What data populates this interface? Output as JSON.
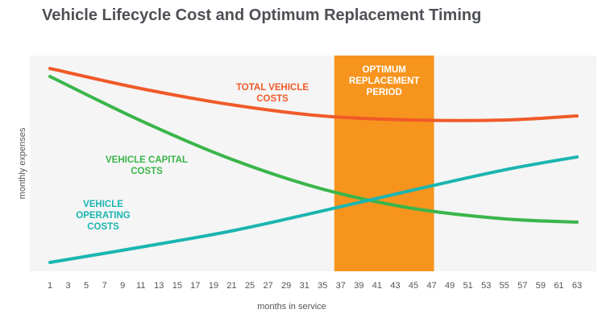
{
  "chart_data": {
    "type": "line",
    "title": "Vehicle Lifecycle Cost and Optimum Replacement Timing",
    "xlabel": "months in service",
    "ylabel": "monthly expenses",
    "categories": [
      "1",
      "3",
      "5",
      "7",
      "9",
      "11",
      "13",
      "15",
      "17",
      "19",
      "21",
      "25",
      "27",
      "29",
      "31",
      "35",
      "37",
      "39",
      "41",
      "43",
      "45",
      "47",
      "49",
      "51",
      "53",
      "55",
      "57",
      "59",
      "61",
      "63"
    ],
    "ylim": [
      0,
      100
    ],
    "grid": false,
    "background": "#f5f5f5",
    "series": [
      {
        "name": "TOTAL VEHICLE COSTS",
        "color": "#f05a28",
        "points": [
          [
            "1",
            94
          ],
          [
            "11",
            84.7
          ],
          [
            "21",
            77.2
          ],
          [
            "35",
            72
          ],
          [
            "45",
            70.1
          ],
          [
            "55",
            70.1
          ],
          [
            "63",
            72
          ]
        ]
      },
      {
        "name": "VEHICLE CAPITAL COSTS",
        "color": "#3ab54a",
        "points": [
          [
            "1",
            90.3
          ],
          [
            "11",
            69.8
          ],
          [
            "21",
            51.9
          ],
          [
            "35",
            38.1
          ],
          [
            "45",
            29.1
          ],
          [
            "55",
            24.3
          ],
          [
            "63",
            22.8
          ]
        ]
      },
      {
        "name": "VEHICLE OPERATING COSTS",
        "color": "#1bb5b0",
        "points": [
          [
            "1",
            4.1
          ],
          [
            "11",
            11.2
          ],
          [
            "21",
            18.7
          ],
          [
            "35",
            28
          ],
          [
            "45",
            37.7
          ],
          [
            "55",
            47
          ],
          [
            "63",
            53
          ]
        ]
      }
    ],
    "annotations": [
      {
        "type": "band",
        "from": "37",
        "to": "47",
        "label": "OPTIMUM REPLACEMENT PERIOD",
        "color": "#f7941d",
        "label_color": "#ffffff"
      }
    ]
  }
}
